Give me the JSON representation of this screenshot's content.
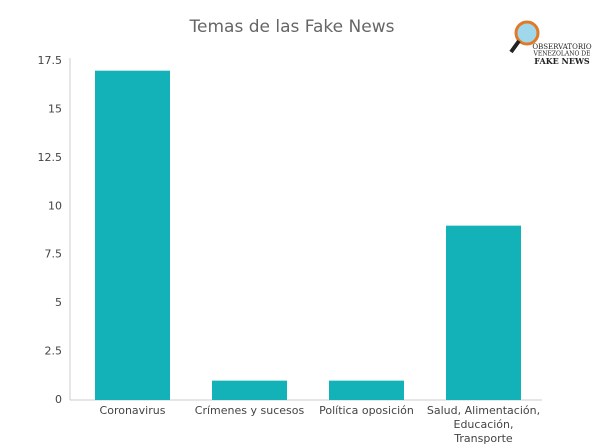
{
  "chart_data": {
    "type": "bar",
    "title": "Temas de las Fake News",
    "categories": [
      "Coronavirus",
      "Crímenes y sucesos",
      "Política oposición",
      "Salud, Alimentación, Educación, Transporte"
    ],
    "values": [
      17,
      1,
      1,
      9
    ],
    "color": "#13b2b9",
    "ylim": [
      0,
      17.5
    ],
    "yticks": [
      0,
      2.5,
      5,
      7.5,
      10,
      12.5,
      15,
      17.5
    ],
    "grid": false
  },
  "logo": {
    "line1": "OBSERVATORIO",
    "line2": "VENEZOLANO DE",
    "line3": "FAKE NEWS"
  }
}
